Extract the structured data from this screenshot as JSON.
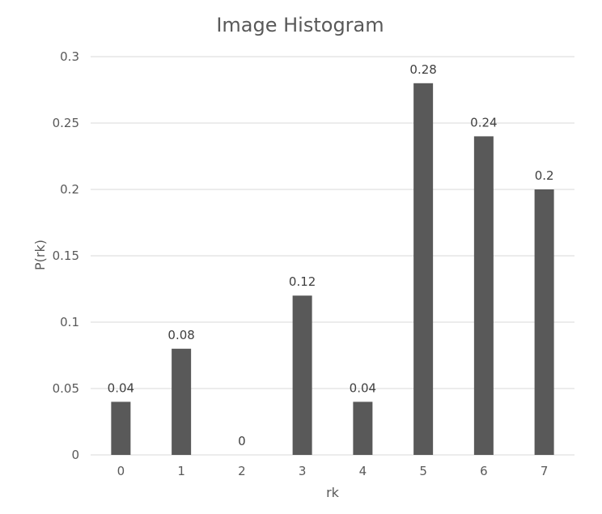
{
  "chart_data": {
    "type": "bar",
    "title": "Image Histogram",
    "xlabel": "rk",
    "ylabel": "P(rk)",
    "categories": [
      "0",
      "1",
      "2",
      "3",
      "4",
      "5",
      "6",
      "7"
    ],
    "values": [
      0.04,
      0.08,
      0,
      0.12,
      0.04,
      0.28,
      0.24,
      0.2
    ],
    "data_labels": [
      "0.04",
      "0.08",
      "0",
      "0.12",
      "0.04",
      "0.28",
      "0.24",
      "0.2"
    ],
    "y_ticks": [
      0,
      0.05,
      0.1,
      0.15,
      0.2,
      0.25,
      0.3
    ],
    "y_tick_labels": [
      "0",
      "0.05",
      "0.1",
      "0.15",
      "0.2",
      "0.25",
      "0.3"
    ],
    "ylim": [
      0,
      0.3
    ],
    "grid": true,
    "legend": "none",
    "bar_color": "#595959",
    "grid_color": "#d9d9d9",
    "text_color": "#595959"
  }
}
